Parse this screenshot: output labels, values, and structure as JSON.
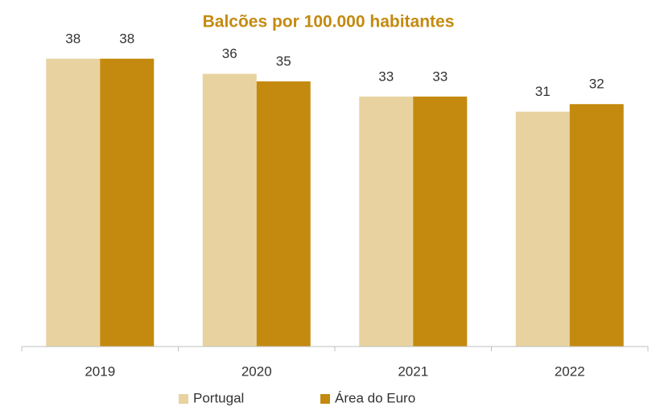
{
  "chart_data": {
    "type": "bar",
    "title": "Balcões por 100.000 habitantes",
    "categories": [
      "2019",
      "2020",
      "2021",
      "2022"
    ],
    "series": [
      {
        "name": "Portugal",
        "color": "#e8d3a0",
        "values": [
          38,
          36,
          33,
          31
        ]
      },
      {
        "name": "Área do Euro",
        "color": "#c48a0f",
        "values": [
          38,
          35,
          33,
          32
        ]
      }
    ],
    "ylim": [
      0,
      40
    ],
    "legend": "bottom",
    "grid": false
  }
}
